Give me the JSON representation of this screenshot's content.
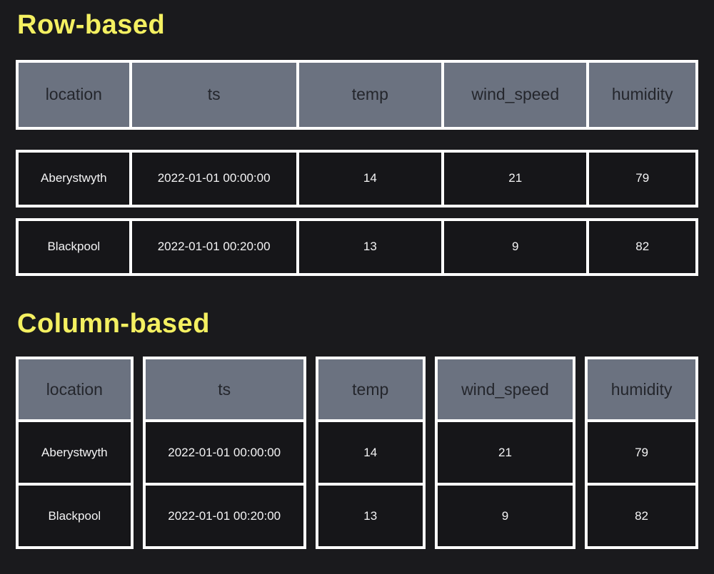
{
  "colors": {
    "background": "#1a1a1d",
    "frame": "#ffffff",
    "header_cell_bg": "#6b7280",
    "header_cell_text": "#24262c",
    "data_cell_bg": "#161619",
    "data_cell_text": "#f4f4f5",
    "title_yellow": "#f4f061"
  },
  "row_based": {
    "title": "Row-based",
    "headers": [
      "location",
      "ts",
      "temp",
      "wind_speed",
      "humidity"
    ],
    "rows": [
      [
        "Aberystwyth",
        "2022-01-01 00:00:00",
        "14",
        "21",
        "79"
      ],
      [
        "Blackpool",
        "2022-01-01 00:20:00",
        "13",
        "9",
        "82"
      ]
    ]
  },
  "column_based": {
    "title": "Column-based",
    "headers": [
      "location",
      "ts",
      "temp",
      "wind_speed",
      "humidity"
    ],
    "columns": [
      [
        "Aberystwyth",
        "Blackpool"
      ],
      [
        "2022-01-01 00:00:00",
        "2022-01-01 00:20:00"
      ],
      [
        "14",
        "13"
      ],
      [
        "21",
        "9"
      ],
      [
        "79",
        "82"
      ]
    ]
  }
}
